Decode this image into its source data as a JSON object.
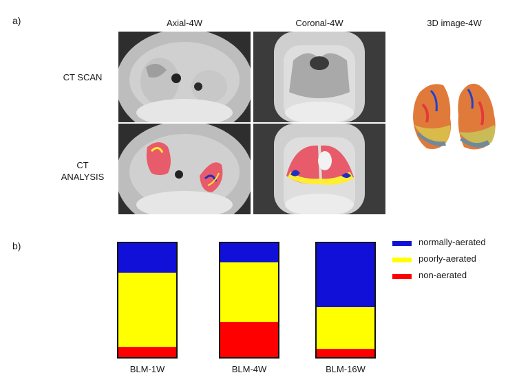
{
  "panel_a": {
    "label": "a)",
    "columns": [
      "Axial-4W",
      "Coronal-4W",
      "3D image-4W"
    ],
    "rows": [
      "CT SCAN",
      "CT\nANALYSIS"
    ]
  },
  "panel_b": {
    "label": "b)"
  },
  "colors": {
    "normally": "#1010d8",
    "poorly": "#ffff00",
    "non": "#ff0000"
  },
  "chart_data": {
    "type": "bar",
    "stacked": true,
    "normalized": true,
    "categories": [
      "BLM-1W",
      "BLM-4W",
      "BLM-16W"
    ],
    "series": [
      {
        "name": "non-aerated",
        "color": "#ff0000",
        "values": [
          0.09,
          0.31,
          0.07
        ]
      },
      {
        "name": "poorly-aerated",
        "color": "#ffff00",
        "values": [
          0.65,
          0.52,
          0.37
        ]
      },
      {
        "name": "normally-aerated",
        "color": "#1010d8",
        "values": [
          0.26,
          0.17,
          0.56
        ]
      }
    ],
    "legend": {
      "position": "top-right",
      "entries": [
        "normally-aerated",
        "poorly-aerated",
        "non-aerated"
      ]
    },
    "ylim": [
      0,
      1
    ]
  }
}
